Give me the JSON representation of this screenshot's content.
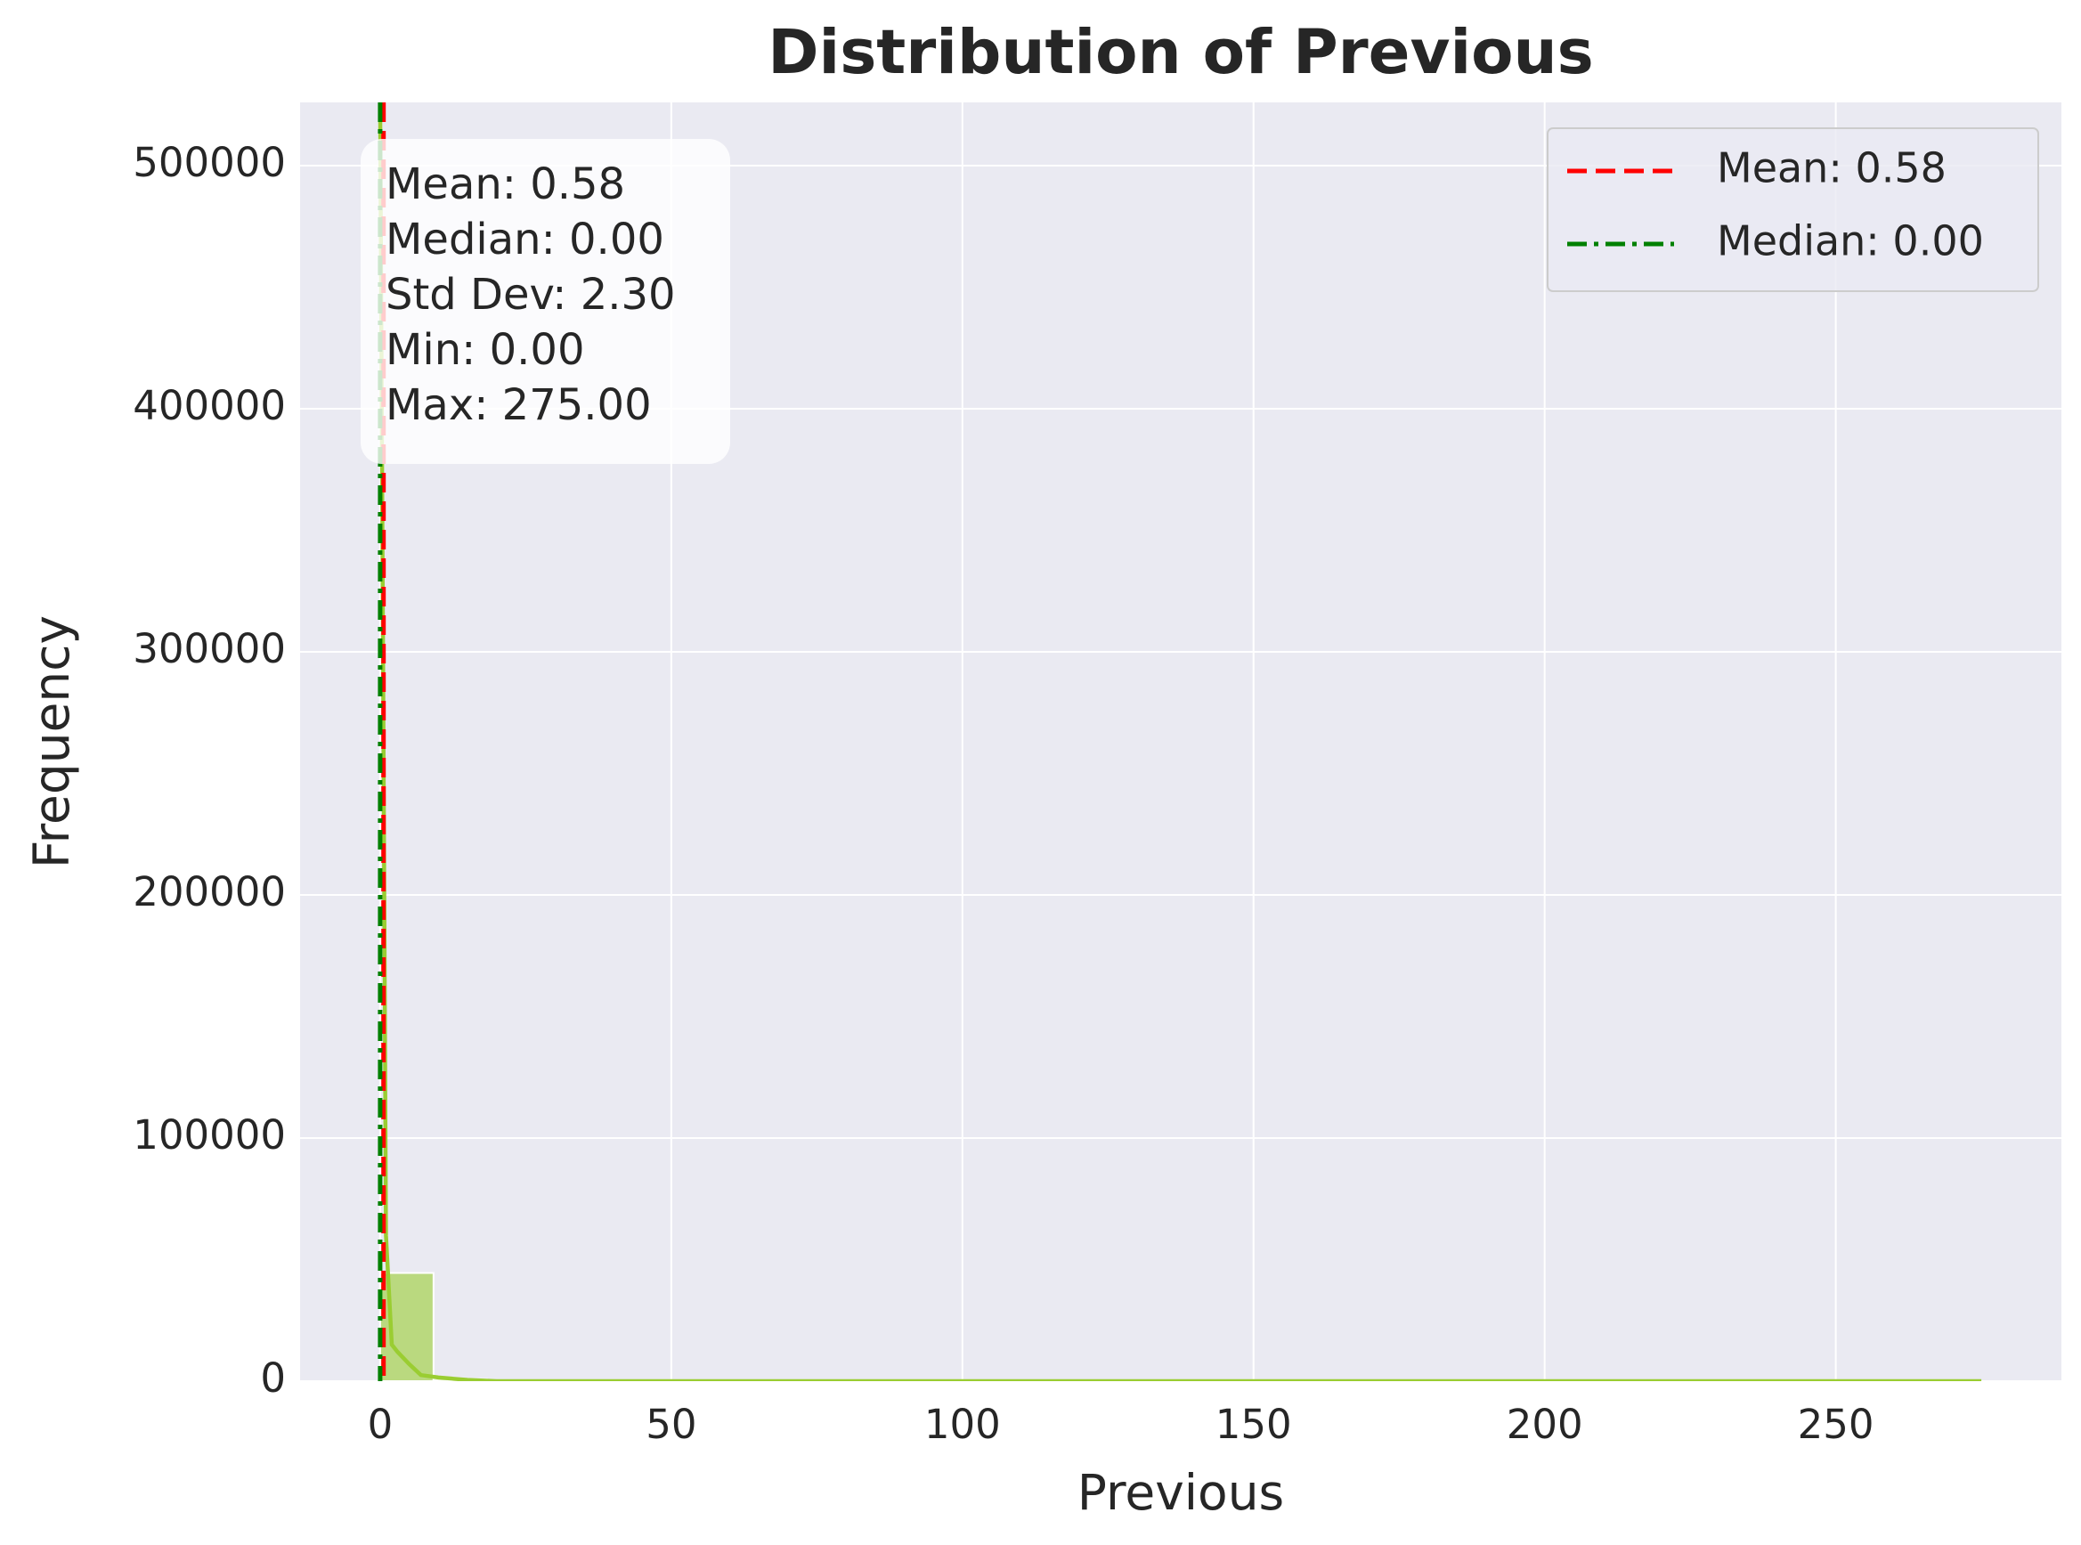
{
  "chart_data": {
    "type": "histogram",
    "title": "Distribution of Previous",
    "x_label": "Previous",
    "y_label": "Frequency",
    "bins": [
      0,
      9.1667,
      18.3333,
      27.5,
      36.6667,
      45.8333,
      55,
      64.1667,
      73.3333,
      82.5,
      91.6667,
      100.8333,
      110,
      119.1667,
      128.3333,
      137.5,
      146.6667,
      155.8333,
      165,
      174.1667,
      183.3333,
      192.5,
      201.6667,
      210.8333,
      220,
      229.1667,
      238.3333,
      247.5,
      256.6667,
      265.8333,
      275
    ],
    "counts": [
      44500,
      800,
      200,
      100,
      0,
      0,
      0,
      0,
      0,
      0,
      0,
      0,
      0,
      0,
      0,
      0,
      0,
      0,
      0,
      0,
      0,
      0,
      0,
      0,
      0,
      0,
      0,
      0,
      0,
      0
    ],
    "color": "#9acd32",
    "kde": {
      "x": [
        0,
        0.5,
        1,
        2,
        3,
        5,
        7,
        10,
        15,
        20,
        50,
        275
      ],
      "values": [
        526000,
        300000,
        60000,
        15000,
        12000,
        7000,
        2500,
        1500,
        500,
        0,
        0,
        0
      ],
      "color": "#9acd32"
    },
    "vlines": [
      {
        "name": "Mean: 0.58",
        "value": 0.58,
        "color": "#ff0000",
        "dash": "dashed"
      },
      {
        "name": "Median: 0.00",
        "value": 0,
        "color": "#008000",
        "dash": "dashdot"
      }
    ],
    "stats_box": [
      "Mean: 0.58",
      "Median: 0.00",
      "Std Dev: 2.30",
      "Min: 0.00",
      "Max: 275.00"
    ],
    "xlim": [
      -13.75,
      288.75
    ],
    "ylim": [
      0,
      526000
    ],
    "xticks": [
      0,
      50,
      100,
      150,
      200,
      250
    ],
    "yticks": [
      0,
      100000,
      200000,
      300000,
      400000,
      500000
    ],
    "grid": true,
    "legend": "upper right"
  }
}
